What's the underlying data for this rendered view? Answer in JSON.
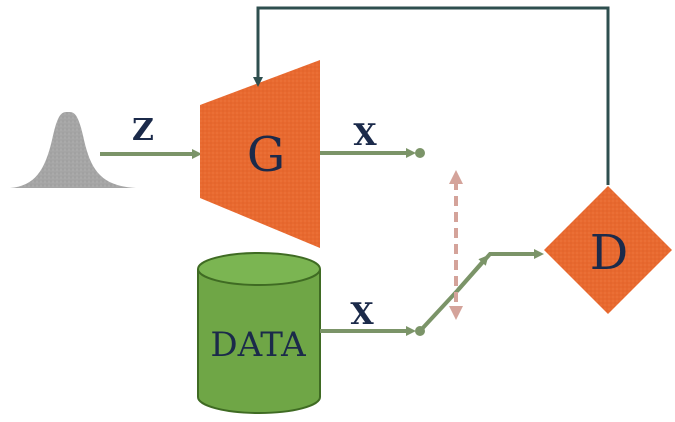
{
  "labels": {
    "noise_input": "Z",
    "generator": "G",
    "generated_output": "X",
    "data_source": "DATA",
    "data_output": "X",
    "discriminator": "D"
  },
  "colors": {
    "generator_fill": "#e8692f",
    "discriminator_fill": "#e8692f",
    "data_fill": "#6fa646",
    "data_top_fill": "#7bb552",
    "data_stroke": "#3f6b23",
    "gaussian_fill": "#a5a5a5",
    "arrow_stroke": "#7b9468",
    "feedback_stroke": "#2f4f4f",
    "switch_dashed": "#d4a39a",
    "text_color": "#1b2a4a"
  }
}
